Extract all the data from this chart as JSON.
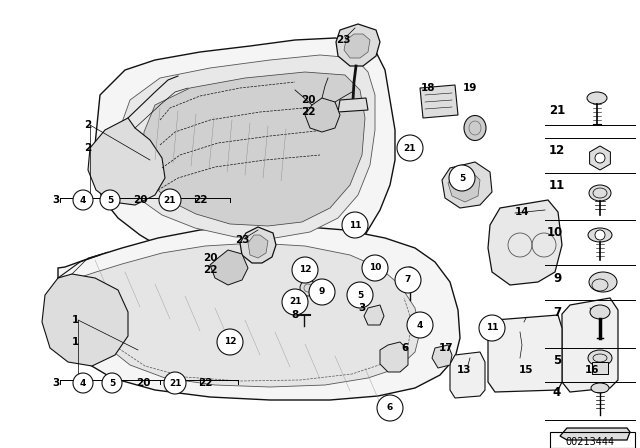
{
  "bg_color": "#ffffff",
  "diagram_number": "00213444",
  "console_color": "#1a1a1a",
  "line_color": "#111111",
  "label_color": "#000000"
}
